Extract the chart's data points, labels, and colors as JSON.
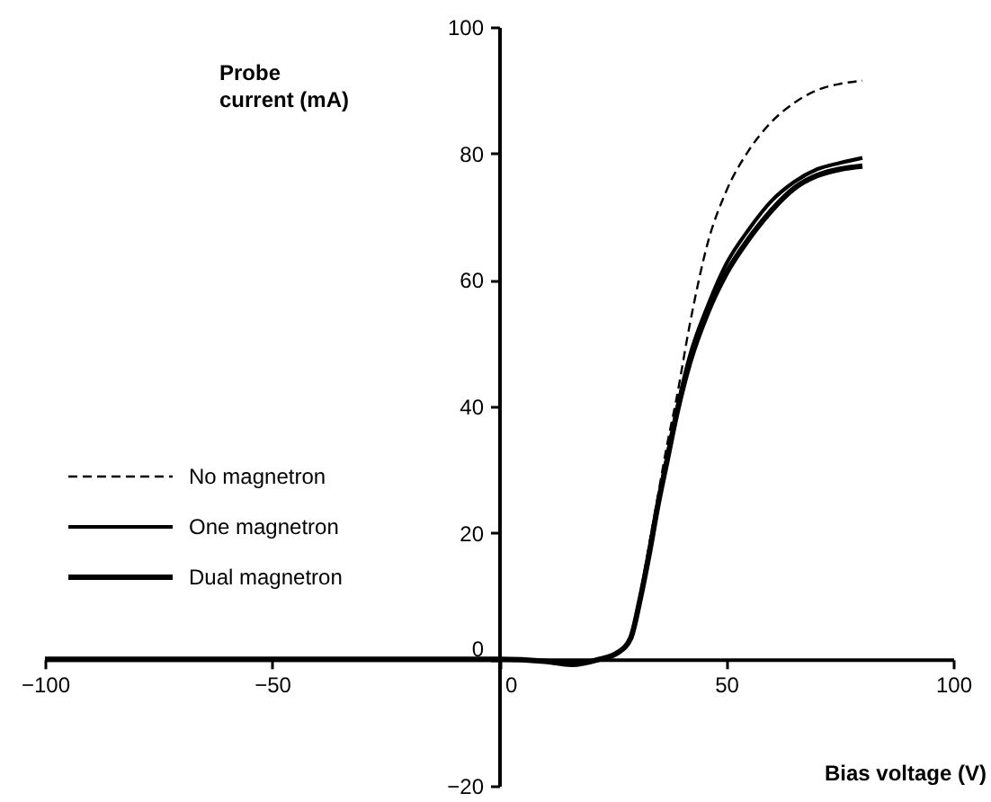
{
  "chart_data": {
    "type": "line",
    "xlabel": "Bias voltage (V)",
    "ylabel": "Probe current (mA)",
    "x": [
      -100,
      0,
      10,
      16,
      22,
      26,
      29,
      31,
      33,
      35,
      37,
      39,
      42,
      46,
      50,
      55,
      60,
      65,
      70,
      75,
      80
    ],
    "series": [
      {
        "name": "No magnetron",
        "color": "#000000",
        "line_style": "dashed",
        "values": [
          0,
          0,
          -0.3,
          -0.8,
          0,
          1,
          3.5,
          10,
          18,
          26,
          34,
          41,
          53,
          66,
          74,
          80.5,
          85,
          88,
          90,
          91,
          91.5
        ]
      },
      {
        "name": "One magnetron",
        "color": "#000000",
        "line_style": "solid",
        "values": [
          0,
          0,
          -0.3,
          -0.8,
          0,
          1,
          3.4,
          9.5,
          17,
          25,
          32,
          39,
          48,
          56,
          62.5,
          68,
          72.5,
          75.5,
          77.5,
          78.5,
          79.3
        ]
      },
      {
        "name": "Dual magnetron",
        "color": "#000000",
        "line_style": "solid",
        "values": [
          0,
          0,
          -0.3,
          -0.8,
          0,
          1,
          3.4,
          9.3,
          16.5,
          24.5,
          31.5,
          38.5,
          47,
          55,
          61,
          66.5,
          71,
          74.5,
          76.5,
          77.5,
          78
        ]
      }
    ],
    "xlim": [
      -100,
      100
    ],
    "xticks": [
      -100,
      -50,
      0,
      50,
      100
    ],
    "ylim": [
      -20,
      100
    ],
    "yticks": [
      -20,
      0,
      20,
      40,
      60,
      80,
      100
    ],
    "grid": false,
    "legend": "left",
    "marker": "none"
  }
}
